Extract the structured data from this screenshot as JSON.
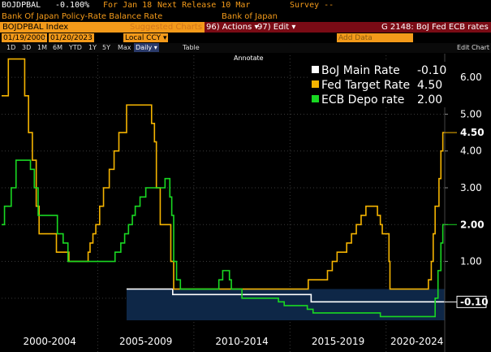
{
  "header": {
    "ticker": "BOJDPBAL",
    "value": "-0.100%",
    "for_label": "For Jan 18",
    "next_release": "Next Release 10 Mar",
    "survey": "Survey --",
    "description": "Bank Of Japan Policy-Rate Balance Rate",
    "source": "Bank of Japan"
  },
  "toolbar": {
    "index": "BOJDPBAL Index",
    "suggested": "Suggested Charts",
    "actions": "96) Actions ▾",
    "edit": "97) Edit ▾",
    "title": "G 2148: BoJ Fed ECB rates"
  },
  "dates": {
    "start": "01/19/2000",
    "end": "01/20/2023",
    "currency": "Local CCY ▾",
    "add_data": "Add Data",
    "edit_chart": "Edit Chart"
  },
  "tabs": [
    "1D",
    "3D",
    "1M",
    "6M",
    "YTD",
    "1Y",
    "5Y",
    "Max"
  ],
  "frequency": "Daily ▾",
  "table_label": "Table",
  "annotate": "Annotate",
  "colors": {
    "boj": "#ffffff",
    "fed": "#f5b400",
    "ecb": "#19d822"
  },
  "chart_data": {
    "type": "line",
    "xlabels": [
      "2000-2004",
      "2005-2009",
      "2010-2014",
      "2015-2019",
      "2020-2024"
    ],
    "yticks": [
      "6.00",
      "5.00",
      "4.00",
      "3.00",
      "2.00",
      "1.00"
    ],
    "ylim": [
      -0.6,
      6.6
    ],
    "series": [
      {
        "name": "BoJ Main Rate",
        "last": "-0.10",
        "color": "#ffffff",
        "points": [
          [
            2006.5,
            0.25
          ],
          [
            2008.9,
            0.25
          ],
          [
            2008.9,
            0.1
          ],
          [
            2016.1,
            0.1
          ],
          [
            2016.1,
            -0.1
          ],
          [
            2023.05,
            -0.1
          ]
        ]
      },
      {
        "name": "Fed Target Rate",
        "last": "4.50",
        "color": "#f5b400",
        "points": [
          [
            2000.0,
            5.5
          ],
          [
            2000.35,
            6.5
          ],
          [
            2001.0,
            6.5
          ],
          [
            2001.2,
            5.5
          ],
          [
            2001.4,
            4.5
          ],
          [
            2001.6,
            3.75
          ],
          [
            2001.8,
            2.5
          ],
          [
            2001.95,
            1.75
          ],
          [
            2002.85,
            1.25
          ],
          [
            2003.5,
            1.0
          ],
          [
            2004.5,
            1.25
          ],
          [
            2004.6,
            1.5
          ],
          [
            2004.75,
            1.75
          ],
          [
            2004.9,
            2.0
          ],
          [
            2005.1,
            2.5
          ],
          [
            2005.3,
            3.0
          ],
          [
            2005.6,
            3.5
          ],
          [
            2005.85,
            4.0
          ],
          [
            2006.1,
            4.5
          ],
          [
            2006.5,
            5.25
          ],
          [
            2007.7,
            5.25
          ],
          [
            2007.8,
            4.75
          ],
          [
            2007.95,
            4.25
          ],
          [
            2008.05,
            3.0
          ],
          [
            2008.25,
            2.0
          ],
          [
            2008.8,
            1.0
          ],
          [
            2008.95,
            0.25
          ],
          [
            2015.95,
            0.5
          ],
          [
            2016.95,
            0.75
          ],
          [
            2017.2,
            1.0
          ],
          [
            2017.45,
            1.25
          ],
          [
            2017.95,
            1.5
          ],
          [
            2018.2,
            1.75
          ],
          [
            2018.45,
            2.0
          ],
          [
            2018.7,
            2.25
          ],
          [
            2018.95,
            2.5
          ],
          [
            2019.55,
            2.25
          ],
          [
            2019.7,
            2.0
          ],
          [
            2019.8,
            1.75
          ],
          [
            2020.15,
            1.0
          ],
          [
            2020.2,
            0.25
          ],
          [
            2022.2,
            0.5
          ],
          [
            2022.35,
            1.0
          ],
          [
            2022.45,
            1.75
          ],
          [
            2022.55,
            2.5
          ],
          [
            2022.75,
            3.25
          ],
          [
            2022.85,
            4.0
          ],
          [
            2022.95,
            4.5
          ],
          [
            2023.05,
            4.5
          ]
        ]
      },
      {
        "name": "ECB Depo rate",
        "last": "2.00",
        "color": "#19d822",
        "points": [
          [
            2000.0,
            2.0
          ],
          [
            2000.15,
            2.5
          ],
          [
            2000.5,
            3.0
          ],
          [
            2000.75,
            3.75
          ],
          [
            2001.5,
            3.5
          ],
          [
            2001.7,
            3.0
          ],
          [
            2001.9,
            2.25
          ],
          [
            2002.9,
            1.75
          ],
          [
            2003.2,
            1.5
          ],
          [
            2003.45,
            1.0
          ],
          [
            2005.9,
            1.25
          ],
          [
            2006.2,
            1.5
          ],
          [
            2006.4,
            1.75
          ],
          [
            2006.6,
            2.0
          ],
          [
            2006.8,
            2.25
          ],
          [
            2006.95,
            2.5
          ],
          [
            2007.2,
            2.75
          ],
          [
            2007.5,
            3.0
          ],
          [
            2008.5,
            3.25
          ],
          [
            2008.75,
            2.75
          ],
          [
            2008.85,
            2.25
          ],
          [
            2008.95,
            1.0
          ],
          [
            2009.1,
            0.5
          ],
          [
            2009.3,
            0.25
          ],
          [
            2011.3,
            0.5
          ],
          [
            2011.5,
            0.75
          ],
          [
            2011.85,
            0.5
          ],
          [
            2011.95,
            0.25
          ],
          [
            2012.5,
            0.0
          ],
          [
            2014.4,
            -0.1
          ],
          [
            2014.7,
            -0.2
          ],
          [
            2015.9,
            -0.3
          ],
          [
            2016.2,
            -0.4
          ],
          [
            2019.7,
            -0.5
          ],
          [
            2022.55,
            0.0
          ],
          [
            2022.7,
            0.75
          ],
          [
            2022.85,
            1.5
          ],
          [
            2022.95,
            2.0
          ],
          [
            2023.05,
            2.0
          ]
        ]
      }
    ]
  }
}
